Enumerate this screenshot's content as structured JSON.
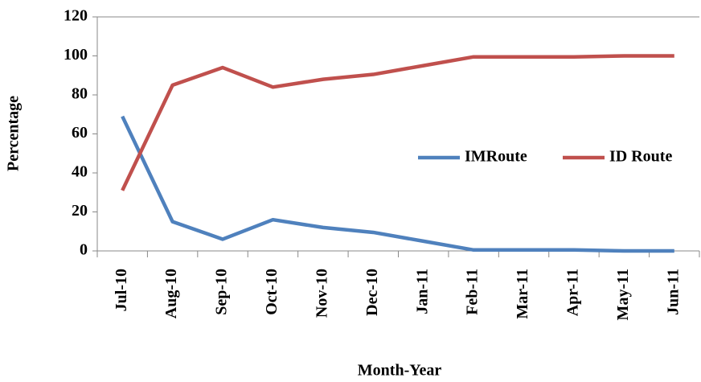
{
  "chart_data": {
    "type": "line",
    "x_label": "Month-Year",
    "y_label": "Percentage",
    "categories": [
      "Jul-10",
      "Aug-10",
      "Sep-10",
      "Oct-10",
      "Nov-10",
      "Dec-10",
      "Jan-11",
      "Feb-11",
      "Mar-11",
      "Apr-11",
      "May-11",
      "Jun-11"
    ],
    "series": [
      {
        "name": "IMRoute",
        "color": "#4f81bd",
        "values": [
          69,
          15,
          6,
          16,
          12,
          9.5,
          5,
          0.5,
          0.5,
          0.5,
          0,
          0
        ]
      },
      {
        "name": "ID Route",
        "color": "#c0504d",
        "values": [
          31,
          85,
          94,
          84,
          88,
          90.5,
          95,
          99.5,
          99.5,
          99.5,
          100,
          100
        ]
      }
    ],
    "ylim": [
      0,
      120
    ],
    "yticks": [
      0,
      20,
      40,
      60,
      80,
      100,
      120
    ],
    "grid": false,
    "legend": "right"
  }
}
